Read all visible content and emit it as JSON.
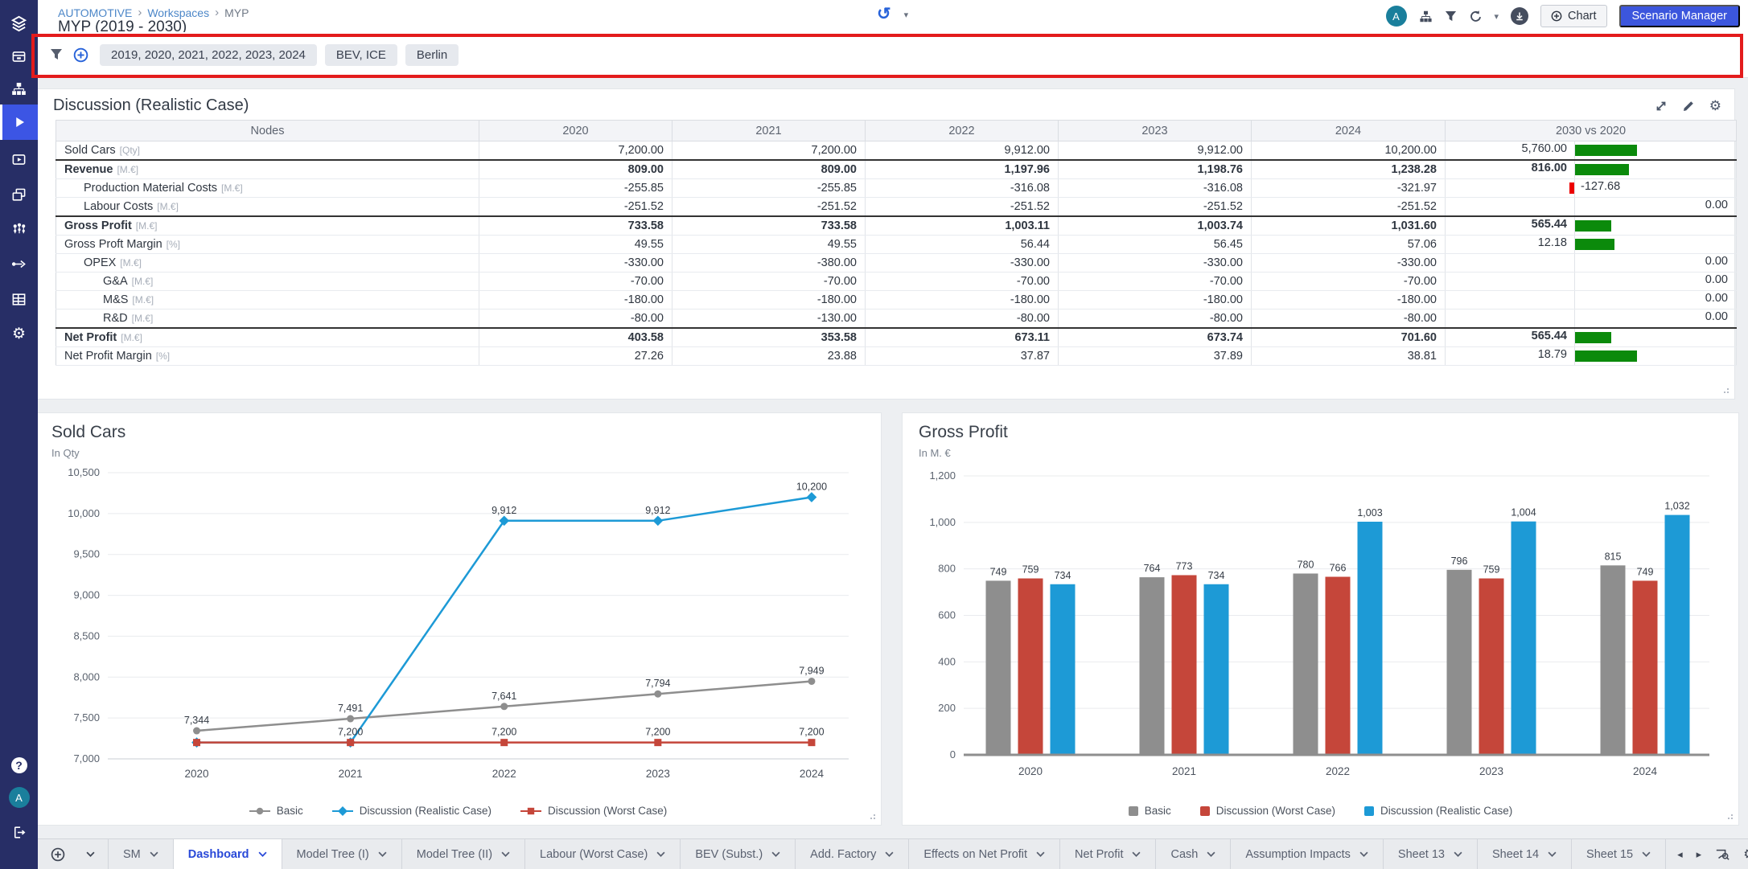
{
  "header": {
    "breadcrumb": [
      "AUTOMOTIVE",
      "Workspaces",
      "MYP"
    ],
    "breadcrumb_separator": "›",
    "title": "MYP (2019 - 2030)",
    "avatar_initial": "A",
    "help_glyph": "?",
    "history_glyph": "↺",
    "chart_button": "Chart",
    "scenario_manager_button": "Scenario Manager"
  },
  "filter_bar": {
    "chips": [
      "2019, 2020, 2021, 2022, 2023, 2024",
      "BEV, ICE",
      "Berlin"
    ]
  },
  "table": {
    "title": "Discussion (Realistic Case)",
    "columns": [
      "Nodes",
      "2020",
      "2021",
      "2022",
      "2023",
      "2024",
      "2030 vs 2020"
    ],
    "rows": [
      {
        "name": "Sold Cars",
        "unit": "[Qty]",
        "indent": 0,
        "bold": false,
        "sep_above": false,
        "values": [
          "7,200.00",
          "7,200.00",
          "9,912.00",
          "9,912.00",
          "10,200.00"
        ],
        "delta": {
          "text": "5,760.00",
          "bar": 77
        }
      },
      {
        "name": "Revenue",
        "unit": "[M.€]",
        "indent": 0,
        "bold": true,
        "sep_above": true,
        "values": [
          "809.00",
          "809.00",
          "1,197.96",
          "1,198.76",
          "1,238.28"
        ],
        "delta": {
          "text": "816.00",
          "bar": 67
        }
      },
      {
        "name": "Production Material Costs",
        "unit": "[M.€]",
        "indent": 1,
        "bold": false,
        "sep_above": false,
        "values": [
          "-255.85",
          "-255.85",
          "-316.08",
          "-316.08",
          "-321.97"
        ],
        "delta": {
          "text": "-127.68",
          "bar": -6
        }
      },
      {
        "name": "Labour Costs",
        "unit": "[M.€]",
        "indent": 1,
        "bold": false,
        "sep_above": false,
        "values": [
          "-251.52",
          "-251.52",
          "-251.52",
          "-251.52",
          "-251.52"
        ],
        "delta": {
          "text": "0.00",
          "bar": 0
        }
      },
      {
        "name": "Gross Profit",
        "unit": "[M.€]",
        "indent": 0,
        "bold": true,
        "sep_above": true,
        "values": [
          "733.58",
          "733.58",
          "1,003.11",
          "1,003.74",
          "1,031.60"
        ],
        "delta": {
          "text": "565.44",
          "bar": 45
        }
      },
      {
        "name": "Gross Proft Margin",
        "unit": "[%]",
        "indent": 0,
        "bold": false,
        "sep_above": false,
        "values": [
          "49.55",
          "49.55",
          "56.44",
          "56.45",
          "57.06"
        ],
        "delta": {
          "text": "12.18",
          "bar": 49
        }
      },
      {
        "name": "OPEX",
        "unit": "[M.€]",
        "indent": 1,
        "bold": false,
        "sep_above": false,
        "values": [
          "-330.00",
          "-380.00",
          "-330.00",
          "-330.00",
          "-330.00"
        ],
        "delta": {
          "text": "0.00",
          "bar": 0
        }
      },
      {
        "name": "G&A",
        "unit": "[M.€]",
        "indent": 2,
        "bold": false,
        "sep_above": false,
        "values": [
          "-70.00",
          "-70.00",
          "-70.00",
          "-70.00",
          "-70.00"
        ],
        "delta": {
          "text": "0.00",
          "bar": 0
        }
      },
      {
        "name": "M&S",
        "unit": "[M.€]",
        "indent": 2,
        "bold": false,
        "sep_above": false,
        "values": [
          "-180.00",
          "-180.00",
          "-180.00",
          "-180.00",
          "-180.00"
        ],
        "delta": {
          "text": "0.00",
          "bar": 0
        }
      },
      {
        "name": "R&D",
        "unit": "[M.€]",
        "indent": 2,
        "bold": false,
        "sep_above": false,
        "values": [
          "-80.00",
          "-130.00",
          "-80.00",
          "-80.00",
          "-80.00"
        ],
        "delta": {
          "text": "0.00",
          "bar": 0
        }
      },
      {
        "name": "Net Profit",
        "unit": "[M.€]",
        "indent": 0,
        "bold": true,
        "sep_above": true,
        "values": [
          "403.58",
          "353.58",
          "673.11",
          "673.74",
          "701.60"
        ],
        "delta": {
          "text": "565.44",
          "bar": 45
        }
      },
      {
        "name": "Net Profit Margin",
        "unit": "[%]",
        "indent": 0,
        "bold": false,
        "sep_above": false,
        "values": [
          "27.26",
          "23.88",
          "37.87",
          "37.89",
          "38.81"
        ],
        "delta": {
          "text": "18.79",
          "bar": 77
        }
      }
    ],
    "positive_bar_color": "#0b8a0b",
    "negative_bar_color": "#ec0000"
  },
  "chart_data": [
    {
      "type": "line",
      "title": "Sold Cars",
      "unit_label": "In Qty",
      "x": [
        "2020",
        "2021",
        "2022",
        "2023",
        "2024"
      ],
      "ylim": [
        7000,
        10500
      ],
      "ytick_step": 500,
      "ytick_labels": [
        "7,000",
        "7,500",
        "8,000",
        "8,500",
        "9,000",
        "9,500",
        "10,000",
        "10,500"
      ],
      "grid": true,
      "legend_position": "bottom",
      "series": [
        {
          "name": "Basic",
          "color": "#8e8e8e",
          "marker": "circle",
          "values": [
            7344,
            7491,
            7641,
            7794,
            7949
          ],
          "labels": [
            "7,344",
            "7,491",
            "7,641",
            "7,794",
            "7,949"
          ]
        },
        {
          "name": "Discussion (Realistic Case)",
          "color": "#1d9ad6",
          "marker": "diamond",
          "values": [
            7200,
            7200,
            9912,
            9912,
            10200
          ],
          "labels": [
            null,
            null,
            "9,912",
            "9,912",
            "10,200"
          ]
        },
        {
          "name": "Discussion (Worst Case)",
          "color": "#c5463a",
          "marker": "square",
          "values": [
            7200,
            7200,
            7200,
            7200,
            7200
          ],
          "labels": [
            null,
            "7,200",
            "7,200",
            "7,200",
            "7,200"
          ]
        }
      ]
    },
    {
      "type": "bar",
      "title": "Gross Profit",
      "unit_label": "In M. €",
      "categories": [
        "2020",
        "2021",
        "2022",
        "2023",
        "2024"
      ],
      "ylim": [
        0,
        1200
      ],
      "ytick_step": 200,
      "ytick_labels": [
        "0",
        "200",
        "400",
        "600",
        "800",
        "1,000",
        "1,200"
      ],
      "grid": true,
      "legend_position": "bottom",
      "series": [
        {
          "name": "Basic",
          "color": "#8e8e8e",
          "values": [
            749,
            764,
            780,
            796,
            815
          ],
          "labels": [
            "749",
            "764",
            "780",
            "796",
            "815"
          ]
        },
        {
          "name": "Discussion (Worst Case)",
          "color": "#c5463a",
          "values": [
            759,
            773,
            766,
            759,
            749
          ],
          "labels": [
            "759",
            "773",
            "766",
            "759",
            "749"
          ]
        },
        {
          "name": "Discussion (Realistic Case)",
          "color": "#1d9ad6",
          "values": [
            734,
            734,
            1003,
            1004,
            1032
          ],
          "labels": [
            "734",
            "734",
            "1,003",
            "1,004",
            "1,032"
          ]
        }
      ]
    }
  ],
  "tabs": {
    "items": [
      {
        "label": "SM",
        "active": false
      },
      {
        "label": "Dashboard",
        "active": true
      },
      {
        "label": "Model Tree (I)",
        "active": false
      },
      {
        "label": "Model Tree (II)",
        "active": false
      },
      {
        "label": "Labour (Worst Case)",
        "active": false
      },
      {
        "label": "BEV (Subst.)",
        "active": false
      },
      {
        "label": "Add. Factory",
        "active": false
      },
      {
        "label": "Effects on Net Profit",
        "active": false
      },
      {
        "label": "Net Profit",
        "active": false
      },
      {
        "label": "Cash",
        "active": false
      },
      {
        "label": "Assumption Impacts",
        "active": false
      },
      {
        "label": "Sheet 13",
        "active": false
      },
      {
        "label": "Sheet 14",
        "active": false
      },
      {
        "label": "Sheet 15",
        "active": false
      }
    ],
    "prev_glyph": "◂",
    "next_glyph": "▸"
  },
  "colors": {
    "accent_blue": "#3c56dd",
    "annotation_red": "#e31b1c",
    "sidebar_navy": "#272e66",
    "avatar_teal": "#1a7f9c"
  }
}
